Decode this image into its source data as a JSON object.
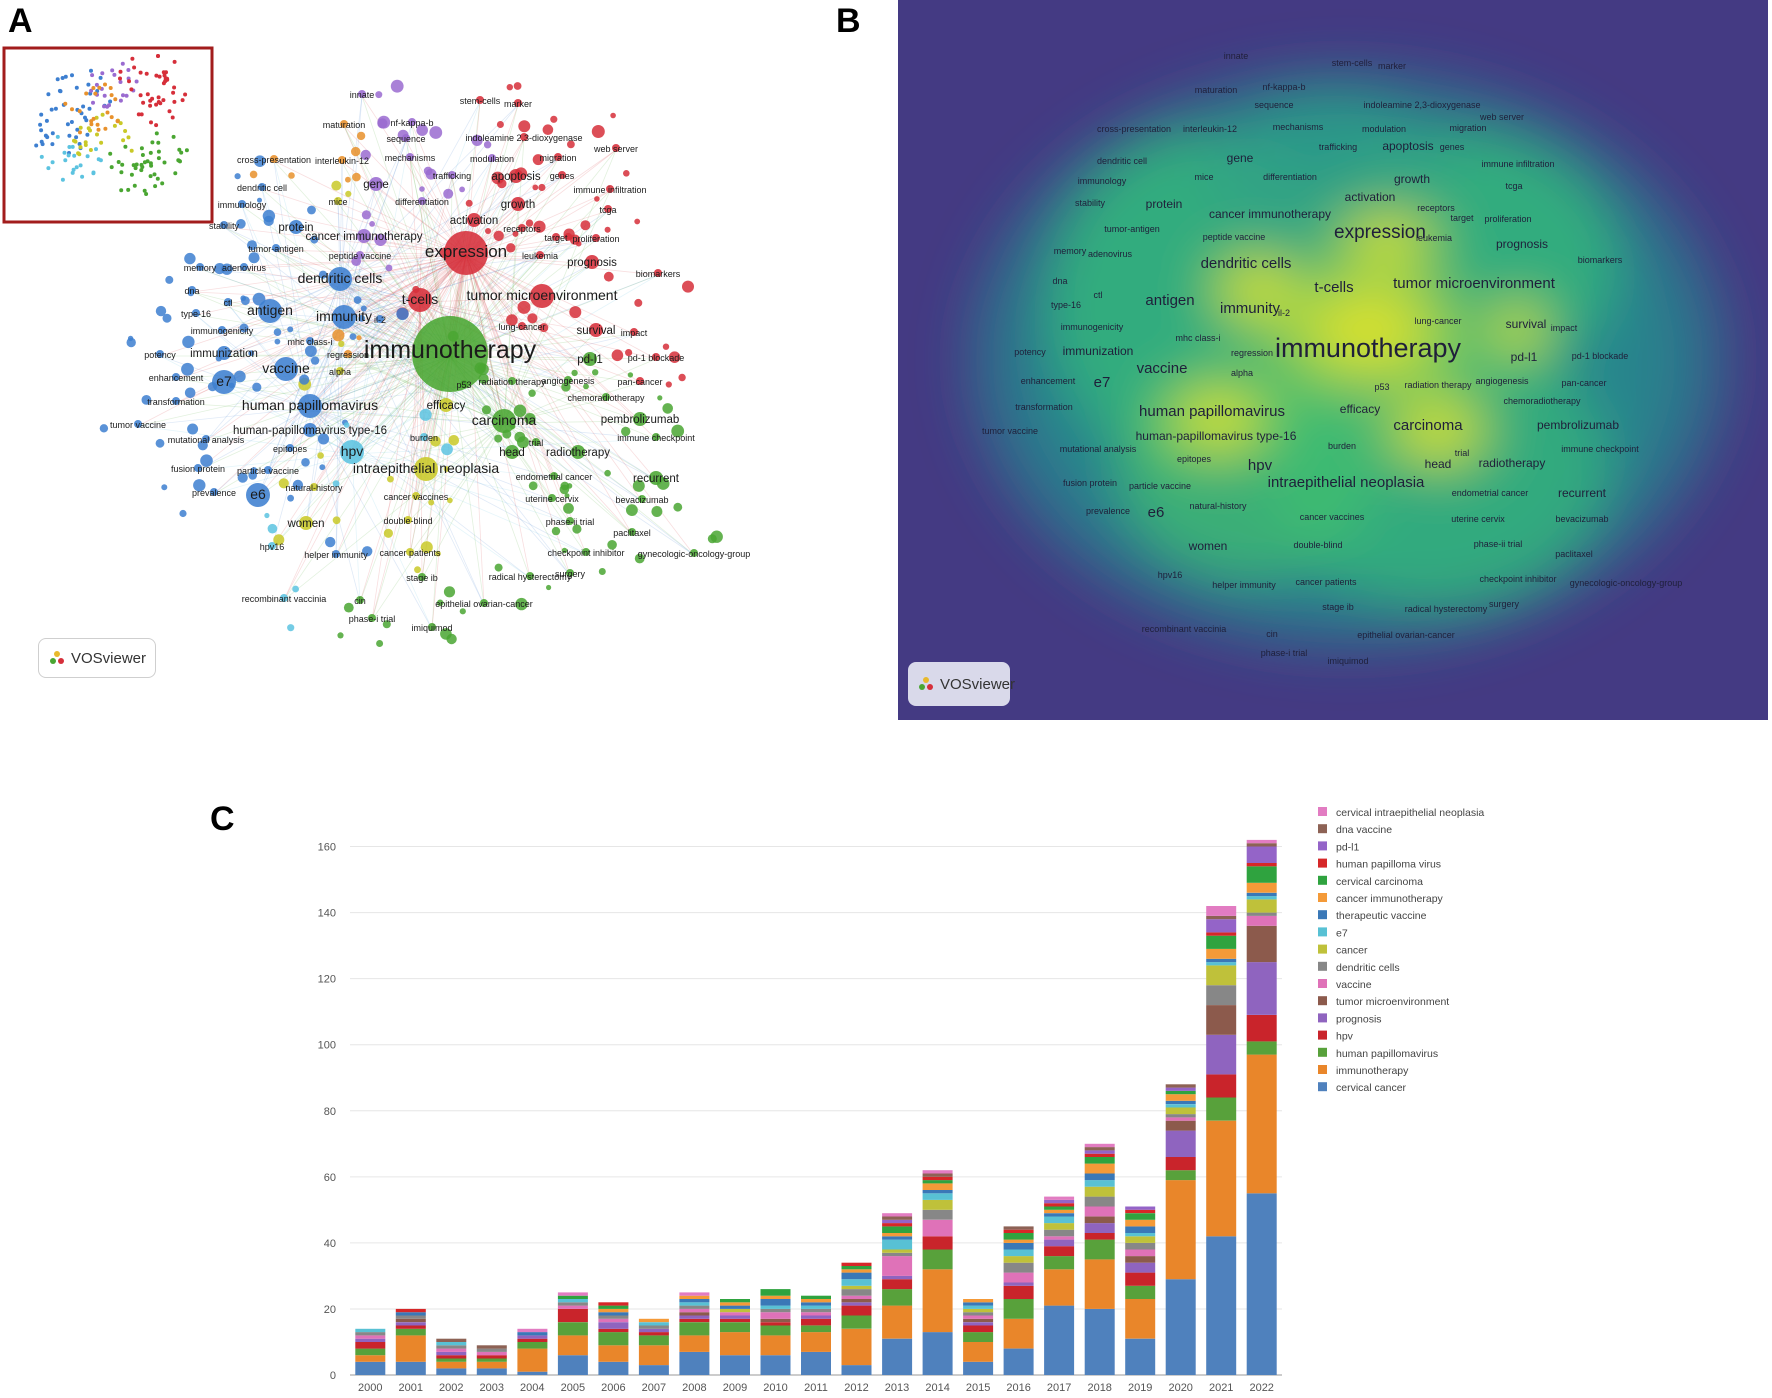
{
  "panels": {
    "a": "A",
    "b": "B",
    "c": "C"
  },
  "logo_text": "VOSviewer",
  "cluster_colors": {
    "red": "#d62f3a",
    "green": "#4aa632",
    "blue": "#3d7fd0",
    "yellow": "#c9c928",
    "purple": "#9a6bd0",
    "cyan": "#5cc3e0",
    "orange": "#e8912c"
  },
  "network_nodes": [
    {
      "label": "innate",
      "c": "purple",
      "s": 1
    },
    {
      "label": "maturation",
      "c": "orange",
      "s": 1
    },
    {
      "label": "nf-kappa-b",
      "c": "purple",
      "s": 1
    },
    {
      "label": "sequence",
      "c": "purple",
      "s": 1
    },
    {
      "label": "mechanisms",
      "c": "purple",
      "s": 1
    },
    {
      "label": "stem-cells",
      "c": "red",
      "s": 1
    },
    {
      "label": "marker",
      "c": "red",
      "s": 1
    },
    {
      "label": "indoleamine 2,3-dioxygenase",
      "c": "red",
      "s": 1
    },
    {
      "label": "modulation",
      "c": "purple",
      "s": 1
    },
    {
      "label": "migration",
      "c": "red",
      "s": 1
    },
    {
      "label": "web server",
      "c": "red",
      "s": 1
    },
    {
      "label": "cross-presentation",
      "c": "orange",
      "s": 1
    },
    {
      "label": "interleukin-12",
      "c": "orange",
      "s": 1
    },
    {
      "label": "trafficking",
      "c": "purple",
      "s": 1
    },
    {
      "label": "apoptosis",
      "c": "red",
      "s": 2
    },
    {
      "label": "genes",
      "c": "red",
      "s": 1
    },
    {
      "label": "immune infiltration",
      "c": "red",
      "s": 1
    },
    {
      "label": "dendritic cell",
      "c": "blue",
      "s": 1
    },
    {
      "label": "gene",
      "c": "purple",
      "s": 2
    },
    {
      "label": "growth",
      "c": "red",
      "s": 2
    },
    {
      "label": "immunology",
      "c": "blue",
      "s": 1
    },
    {
      "label": "mice",
      "c": "yellow",
      "s": 1
    },
    {
      "label": "differentiation",
      "c": "purple",
      "s": 1
    },
    {
      "label": "tcga",
      "c": "red",
      "s": 1
    },
    {
      "label": "stability",
      "c": "blue",
      "s": 1
    },
    {
      "label": "protein",
      "c": "blue",
      "s": 2
    },
    {
      "label": "activation",
      "c": "red",
      "s": 2
    },
    {
      "label": "receptors",
      "c": "red",
      "s": 1
    },
    {
      "label": "cancer immunotherapy",
      "c": "purple",
      "s": 2
    },
    {
      "label": "target",
      "c": "red",
      "s": 1
    },
    {
      "label": "proliferation",
      "c": "red",
      "s": 1
    },
    {
      "label": "tumor-antigen",
      "c": "blue",
      "s": 1
    },
    {
      "label": "peptide vaccine",
      "c": "purple",
      "s": 1
    },
    {
      "label": "leukemia",
      "c": "red",
      "s": 1
    },
    {
      "label": "expression",
      "c": "red",
      "s": 4
    },
    {
      "label": "prognosis",
      "c": "red",
      "s": 2
    },
    {
      "label": "memory",
      "c": "blue",
      "s": 1
    },
    {
      "label": "adenovirus",
      "c": "blue",
      "s": 1
    },
    {
      "label": "biomarkers",
      "c": "red",
      "s": 1
    },
    {
      "label": "dendritic cells",
      "c": "blue",
      "s": 3
    },
    {
      "label": "dna",
      "c": "blue",
      "s": 1
    },
    {
      "label": "ctl",
      "c": "blue",
      "s": 1
    },
    {
      "label": "t-cells",
      "c": "red",
      "s": 3
    },
    {
      "label": "tumor microenvironment",
      "c": "red",
      "s": 3
    },
    {
      "label": "type-16",
      "c": "blue",
      "s": 1
    },
    {
      "label": "antigen",
      "c": "blue",
      "s": 3
    },
    {
      "label": "immunity",
      "c": "blue",
      "s": 3
    },
    {
      "label": "il-2",
      "c": "blue",
      "s": 1
    },
    {
      "label": "lung-cancer",
      "c": "red",
      "s": 1
    },
    {
      "label": "survival",
      "c": "red",
      "s": 2
    },
    {
      "label": "impact",
      "c": "red",
      "s": 1
    },
    {
      "label": "immunogenicity",
      "c": "blue",
      "s": 1
    },
    {
      "label": "mhc class-i",
      "c": "blue",
      "s": 1
    },
    {
      "label": "potency",
      "c": "blue",
      "s": 1
    },
    {
      "label": "immunization",
      "c": "blue",
      "s": 2
    },
    {
      "label": "regression",
      "c": "orange",
      "s": 1
    },
    {
      "label": "immunotherapy",
      "c": "green",
      "s": 5
    },
    {
      "label": "pd-l1",
      "c": "green",
      "s": 2
    },
    {
      "label": "pd-1 blockade",
      "c": "red",
      "s": 1
    },
    {
      "label": "vaccine",
      "c": "blue",
      "s": 3
    },
    {
      "label": "alpha",
      "c": "yellow",
      "s": 1
    },
    {
      "label": "enhancement",
      "c": "blue",
      "s": 1
    },
    {
      "label": "e7",
      "c": "blue",
      "s": 3
    },
    {
      "label": "angiogenesis",
      "c": "green",
      "s": 1
    },
    {
      "label": "pan-cancer",
      "c": "red",
      "s": 1
    },
    {
      "label": "p53",
      "c": "green",
      "s": 1
    },
    {
      "label": "radiation therapy",
      "c": "green",
      "s": 1
    },
    {
      "label": "transformation",
      "c": "blue",
      "s": 1
    },
    {
      "label": "human papillomavirus",
      "c": "blue",
      "s": 3
    },
    {
      "label": "efficacy",
      "c": "yellow",
      "s": 2
    },
    {
      "label": "chemoradiotherapy",
      "c": "green",
      "s": 1
    },
    {
      "label": "tumor vaccine",
      "c": "blue",
      "s": 1
    },
    {
      "label": "carcinoma",
      "c": "green",
      "s": 3
    },
    {
      "label": "pembrolizumab",
      "c": "green",
      "s": 2
    },
    {
      "label": "human-papillomavirus type-16",
      "c": "blue",
      "s": 2
    },
    {
      "label": "mutational analysis",
      "c": "blue",
      "s": 1
    },
    {
      "label": "burden",
      "c": "cyan",
      "s": 1
    },
    {
      "label": "immune checkpoint",
      "c": "green",
      "s": 1
    },
    {
      "label": "epitopes",
      "c": "blue",
      "s": 1
    },
    {
      "label": "trial",
      "c": "green",
      "s": 1
    },
    {
      "label": "hpv",
      "c": "cyan",
      "s": 3
    },
    {
      "label": "head",
      "c": "green",
      "s": 2
    },
    {
      "label": "radiotherapy",
      "c": "green",
      "s": 2
    },
    {
      "label": "fusion protein",
      "c": "blue",
      "s": 1
    },
    {
      "label": "particle vaccine",
      "c": "blue",
      "s": 1
    },
    {
      "label": "intraepithelial neoplasia",
      "c": "yellow",
      "s": 3
    },
    {
      "label": "endometrial cancer",
      "c": "green",
      "s": 1
    },
    {
      "label": "recurrent",
      "c": "green",
      "s": 2
    },
    {
      "label": "natural-history",
      "c": "yellow",
      "s": 1
    },
    {
      "label": "prevalence",
      "c": "blue",
      "s": 1
    },
    {
      "label": "e6",
      "c": "blue",
      "s": 3
    },
    {
      "label": "cancer vaccines",
      "c": "yellow",
      "s": 1
    },
    {
      "label": "uterine cervix",
      "c": "green",
      "s": 1
    },
    {
      "label": "bevacizumab",
      "c": "green",
      "s": 1
    },
    {
      "label": "double-blind",
      "c": "yellow",
      "s": 1
    },
    {
      "label": "phase-ii trial",
      "c": "green",
      "s": 1
    },
    {
      "label": "women",
      "c": "yellow",
      "s": 2
    },
    {
      "label": "paclitaxel",
      "c": "green",
      "s": 1
    },
    {
      "label": "hpv16",
      "c": "cyan",
      "s": 1
    },
    {
      "label": "helper immunity",
      "c": "blue",
      "s": 1
    },
    {
      "label": "cancer patients",
      "c": "yellow",
      "s": 1
    },
    {
      "label": "checkpoint inhibitor",
      "c": "green",
      "s": 1
    },
    {
      "label": "gynecologic-oncology-group",
      "c": "green",
      "s": 1
    },
    {
      "label": "stage ib",
      "c": "green",
      "s": 1
    },
    {
      "label": "radical hysterectomy",
      "c": "green",
      "s": 1
    },
    {
      "label": "surgery",
      "c": "green",
      "s": 1
    },
    {
      "label": "recombinant vaccinia",
      "c": "cyan",
      "s": 1
    },
    {
      "label": "cin",
      "c": "green",
      "s": 1
    },
    {
      "label": "epithelial ovarian-cancer",
      "c": "green",
      "s": 1
    },
    {
      "label": "phase-i trial",
      "c": "green",
      "s": 1
    },
    {
      "label": "imiquimod",
      "c": "green",
      "s": 1
    }
  ],
  "chart_data": {
    "type": "bar",
    "stacked": true,
    "title": "",
    "xlabel": "",
    "ylabel": "",
    "ylim": [
      0,
      165
    ],
    "yticks": [
      0,
      20,
      40,
      60,
      80,
      100,
      120,
      140,
      160
    ],
    "grid": true,
    "legend_position": "right",
    "categories": [
      "2000",
      "2001",
      "2002",
      "2003",
      "2004",
      "2005",
      "2006",
      "2007",
      "2008",
      "2009",
      "2010",
      "2011",
      "2012",
      "2013",
      "2014",
      "2015",
      "2016",
      "2017",
      "2018",
      "2019",
      "2020",
      "2021",
      "2022"
    ],
    "series": [
      {
        "name": "cervical cancer",
        "color": "#4f81bd",
        "values": [
          4,
          4,
          2,
          2,
          1,
          6,
          4,
          3,
          7,
          6,
          6,
          7,
          3,
          11,
          13,
          4,
          8,
          21,
          20,
          11,
          29,
          42,
          55
        ]
      },
      {
        "name": "immunotherapy",
        "color": "#e9862a",
        "values": [
          2,
          8,
          2,
          2,
          7,
          6,
          5,
          6,
          5,
          7,
          6,
          6,
          11,
          10,
          19,
          6,
          9,
          11,
          15,
          12,
          30,
          35,
          42
        ]
      },
      {
        "name": "human papillomavirus",
        "color": "#58a13b",
        "values": [
          2,
          2,
          1,
          1,
          2,
          4,
          4,
          3,
          4,
          3,
          3,
          2,
          4,
          5,
          6,
          3,
          6,
          4,
          6,
          4,
          3,
          7,
          4
        ]
      },
      {
        "name": "hpv",
        "color": "#c9242b",
        "values": [
          2,
          1,
          1,
          1,
          1,
          4,
          1,
          1,
          1,
          1,
          1,
          2,
          3,
          3,
          4,
          2,
          4,
          3,
          2,
          4,
          4,
          7,
          8
        ]
      },
      {
        "name": "prognosis",
        "color": "#8f64bf",
        "values": [
          1,
          1,
          1,
          0,
          1,
          0,
          2,
          1,
          1,
          1,
          0,
          1,
          1,
          1,
          0,
          1,
          1,
          2,
          3,
          3,
          8,
          12,
          16
        ]
      },
      {
        "name": "tumor microenvironment",
        "color": "#8c5a4c",
        "values": [
          0,
          1,
          0,
          0,
          0,
          0,
          0,
          0,
          1,
          0,
          1,
          0,
          1,
          0,
          0,
          1,
          0,
          0,
          2,
          2,
          3,
          9,
          11
        ]
      },
      {
        "name": "vaccine",
        "color": "#df72b8",
        "values": [
          1,
          0,
          1,
          1,
          0,
          1,
          1,
          0,
          1,
          1,
          2,
          1,
          1,
          6,
          5,
          1,
          3,
          1,
          3,
          2,
          1,
          0,
          3
        ]
      },
      {
        "name": "dendritic cells",
        "color": "#878787",
        "values": [
          1,
          1,
          1,
          1,
          0,
          1,
          1,
          1,
          1,
          0,
          1,
          1,
          2,
          1,
          3,
          1,
          3,
          2,
          3,
          2,
          1,
          6,
          1
        ]
      },
      {
        "name": "cancer",
        "color": "#bfc13a",
        "values": [
          0,
          0,
          0,
          0,
          0,
          0,
          0,
          0,
          0,
          1,
          0,
          0,
          1,
          1,
          3,
          1,
          2,
          2,
          3,
          2,
          2,
          6,
          4
        ]
      },
      {
        "name": "e7",
        "color": "#58c1d4",
        "values": [
          1,
          0,
          1,
          0,
          0,
          1,
          0,
          1,
          1,
          0,
          1,
          1,
          2,
          3,
          2,
          1,
          2,
          2,
          2,
          1,
          1,
          1,
          1
        ]
      },
      {
        "name": "therapeutic vaccine",
        "color": "#3a78b7",
        "values": [
          0,
          1,
          0,
          0,
          1,
          0,
          1,
          0,
          1,
          1,
          2,
          1,
          2,
          1,
          1,
          1,
          2,
          1,
          2,
          2,
          1,
          1,
          1
        ]
      },
      {
        "name": "cancer immunotherapy",
        "color": "#f49a38",
        "values": [
          0,
          0,
          0,
          0,
          0,
          0,
          1,
          1,
          1,
          1,
          1,
          1,
          1,
          1,
          2,
          1,
          1,
          1,
          3,
          2,
          2,
          3,
          3
        ]
      },
      {
        "name": "cervical carcinoma",
        "color": "#2fa33f",
        "values": [
          0,
          0,
          0,
          0,
          0,
          1,
          1,
          0,
          0,
          1,
          2,
          1,
          1,
          2,
          1,
          0,
          2,
          1,
          2,
          2,
          1,
          4,
          5
        ]
      },
      {
        "name": "human papilloma virus",
        "color": "#d62728",
        "values": [
          0,
          1,
          0,
          0,
          0,
          0,
          1,
          0,
          0,
          0,
          0,
          0,
          1,
          1,
          1,
          0,
          1,
          1,
          1,
          1,
          0,
          1,
          1
        ]
      },
      {
        "name": "pd-l1",
        "color": "#9464c8",
        "values": [
          0,
          0,
          0,
          0,
          0,
          0,
          0,
          0,
          0,
          0,
          0,
          0,
          0,
          1,
          0,
          0,
          0,
          1,
          1,
          1,
          1,
          4,
          5
        ]
      },
      {
        "name": "dna vaccine",
        "color": "#8d6255",
        "values": [
          0,
          0,
          1,
          1,
          0,
          0,
          0,
          0,
          0,
          0,
          0,
          0,
          0,
          1,
          1,
          0,
          1,
          0,
          1,
          0,
          1,
          1,
          1
        ]
      },
      {
        "name": "cervical intraepithelial neoplasia",
        "color": "#e27cc2",
        "values": [
          0,
          0,
          0,
          0,
          1,
          1,
          0,
          0,
          1,
          0,
          0,
          0,
          0,
          1,
          1,
          0,
          0,
          1,
          1,
          0,
          0,
          3,
          1
        ]
      }
    ]
  }
}
